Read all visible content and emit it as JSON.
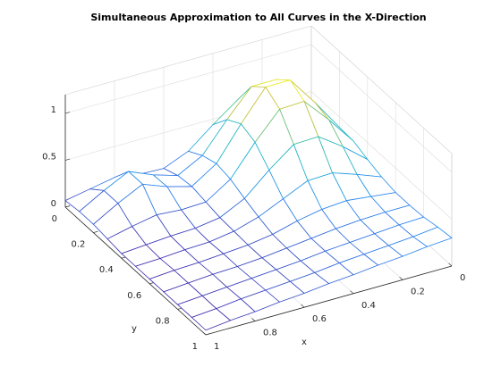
{
  "chart_data": {
    "type": "mesh3d",
    "title": "Simultaneous Approximation to All Curves in the X-Direction",
    "xlabel": "x",
    "ylabel": "y",
    "x": [
      0,
      0.1,
      0.2,
      0.3,
      0.4,
      0.5,
      0.6,
      0.7,
      0.8,
      0.9,
      1
    ],
    "y": [
      0,
      0.1,
      0.2,
      0.3,
      0.4,
      0.5,
      0.6,
      0.7,
      0.8,
      0.9,
      1
    ],
    "z": [
      [
        0.22,
        0.44,
        0.63,
        0.63,
        0.44,
        0.23,
        0.12,
        0.13,
        0.17,
        0.12,
        0.07
      ],
      [
        0.33,
        0.64,
        0.91,
        0.91,
        0.63,
        0.32,
        0.18,
        0.26,
        0.37,
        0.24,
        0.09
      ],
      [
        0.39,
        0.73,
        1.04,
        1.04,
        0.72,
        0.37,
        0.2,
        0.27,
        0.37,
        0.24,
        0.09
      ],
      [
        0.38,
        0.68,
        0.95,
        0.94,
        0.66,
        0.34,
        0.17,
        0.16,
        0.18,
        0.13,
        0.07
      ],
      [
        0.32,
        0.53,
        0.71,
        0.7,
        0.5,
        0.27,
        0.14,
        0.1,
        0.09,
        0.07,
        0.05
      ],
      [
        0.27,
        0.37,
        0.46,
        0.45,
        0.33,
        0.21,
        0.13,
        0.09,
        0.08,
        0.06,
        0.05
      ],
      [
        0.24,
        0.27,
        0.3,
        0.28,
        0.23,
        0.16,
        0.12,
        0.1,
        0.08,
        0.07,
        0.05
      ],
      [
        0.24,
        0.24,
        0.23,
        0.21,
        0.18,
        0.15,
        0.12,
        0.1,
        0.09,
        0.07,
        0.05
      ],
      [
        0.25,
        0.24,
        0.22,
        0.2,
        0.18,
        0.15,
        0.13,
        0.11,
        0.09,
        0.07,
        0.05
      ],
      [
        0.28,
        0.25,
        0.23,
        0.21,
        0.19,
        0.16,
        0.14,
        0.12,
        0.1,
        0.07,
        0.05
      ],
      [
        0.3,
        0.28,
        0.25,
        0.23,
        0.2,
        0.18,
        0.15,
        0.13,
        0.1,
        0.08,
        0.05
      ]
    ],
    "xlim": [
      0,
      1
    ],
    "ylim": [
      0,
      1
    ],
    "zlim": [
      0,
      1.2
    ],
    "xticks": [
      0,
      0.2,
      0.4,
      0.6,
      0.8,
      1
    ],
    "yticks": [
      0,
      0.2,
      0.4,
      0.6,
      0.8,
      1
    ],
    "zticks": [
      0,
      0.5,
      1
    ],
    "grid": true,
    "colormap": "parula"
  }
}
